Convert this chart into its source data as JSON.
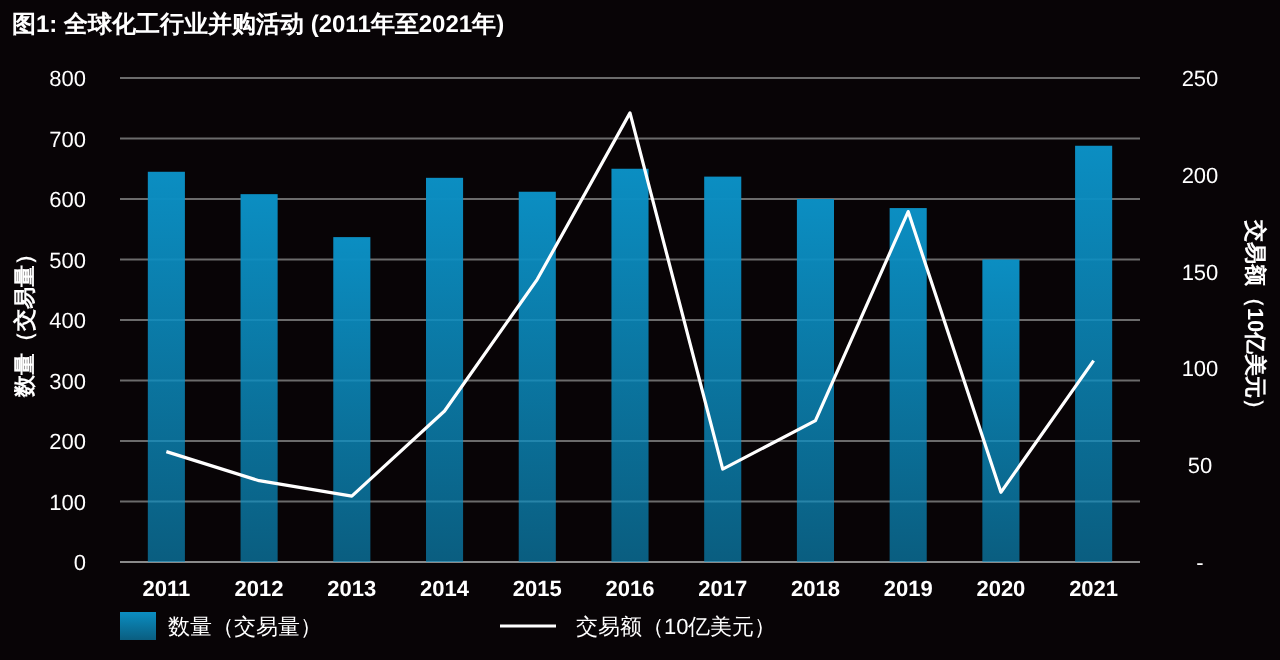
{
  "chart_data": {
    "type": "bar",
    "title": "图1: 全球化工行业并购活动 (2011年至2021年)",
    "ylabel": "数量（交易量）",
    "y2label": "交易额（10亿美元）",
    "categories": [
      "2011",
      "2012",
      "2013",
      "2014",
      "2015",
      "2016",
      "2017",
      "2018",
      "2019",
      "2020",
      "2021"
    ],
    "series": [
      {
        "name": "数量（交易量）",
        "color": "#0b8ec2",
        "values": [
          645,
          608,
          537,
          635,
          612,
          650,
          637,
          600,
          585,
          500,
          688
        ]
      },
      {
        "name": "交易额（10亿美元）",
        "type": "line",
        "axis": "y2",
        "color": "#ffffff",
        "values": [
          57,
          42,
          34,
          78,
          146,
          232,
          48,
          73,
          181,
          36,
          104
        ]
      }
    ],
    "ylim": [
      0,
      800
    ],
    "yticks": [
      0,
      100,
      200,
      300,
      400,
      500,
      600,
      700,
      800
    ],
    "y2lim": [
      0,
      250
    ],
    "y2ticks": [
      {
        "value": 0,
        "label": "-"
      },
      50,
      100,
      150,
      200,
      250
    ],
    "grid": "y",
    "legend": "bottom",
    "marker": "none",
    "line_style": "solid"
  }
}
